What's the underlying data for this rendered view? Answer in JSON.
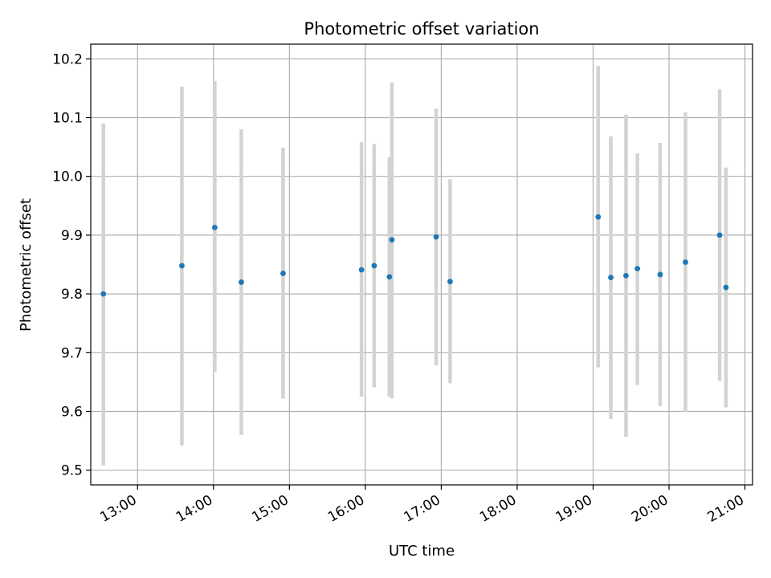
{
  "chart_data": {
    "type": "scatter",
    "title": "Photometric offset variation",
    "xlabel": "UTC time",
    "ylabel": "Photometric offset",
    "x_axis_type": "time",
    "xlim": [
      "12:23",
      "21:06"
    ],
    "ylim": [
      9.475,
      10.225
    ],
    "xticks": [
      "13:00",
      "14:00",
      "15:00",
      "16:00",
      "17:00",
      "18:00",
      "19:00",
      "20:00",
      "21:00"
    ],
    "yticks": [
      9.5,
      9.6,
      9.7,
      9.8,
      9.9,
      10.0,
      10.1,
      10.2
    ],
    "ytick_labels": [
      "9.5",
      "9.6",
      "9.7",
      "9.8",
      "9.9",
      "10.0",
      "10.1",
      "10.2"
    ],
    "grid": true,
    "colors": {
      "point": "#1f77b4",
      "errorbar": "#d3d3d3",
      "grid": "#b0b0b0"
    },
    "points": [
      {
        "x": "12:33",
        "y": 9.8,
        "ylow": 9.508,
        "yhigh": 10.09
      },
      {
        "x": "13:35",
        "y": 9.848,
        "ylow": 9.542,
        "yhigh": 10.153
      },
      {
        "x": "14:01",
        "y": 9.913,
        "ylow": 9.667,
        "yhigh": 10.162
      },
      {
        "x": "14:22",
        "y": 9.82,
        "ylow": 9.56,
        "yhigh": 10.08
      },
      {
        "x": "14:55",
        "y": 9.835,
        "ylow": 9.622,
        "yhigh": 10.049
      },
      {
        "x": "15:57",
        "y": 9.841,
        "ylow": 9.625,
        "yhigh": 10.058
      },
      {
        "x": "16:07",
        "y": 9.848,
        "ylow": 9.641,
        "yhigh": 10.055
      },
      {
        "x": "16:19",
        "y": 9.829,
        "ylow": 9.625,
        "yhigh": 10.033
      },
      {
        "x": "16:21",
        "y": 9.892,
        "ylow": 9.622,
        "yhigh": 10.16
      },
      {
        "x": "16:56",
        "y": 9.897,
        "ylow": 9.678,
        "yhigh": 10.115
      },
      {
        "x": "17:07",
        "y": 9.821,
        "ylow": 9.648,
        "yhigh": 9.995
      },
      {
        "x": "19:04",
        "y": 9.931,
        "ylow": 9.675,
        "yhigh": 10.188
      },
      {
        "x": "19:14",
        "y": 9.828,
        "ylow": 9.587,
        "yhigh": 10.068
      },
      {
        "x": "19:26",
        "y": 9.831,
        "ylow": 9.557,
        "yhigh": 10.105
      },
      {
        "x": "19:35",
        "y": 9.843,
        "ylow": 9.645,
        "yhigh": 10.039
      },
      {
        "x": "19:53",
        "y": 9.833,
        "ylow": 9.609,
        "yhigh": 10.057
      },
      {
        "x": "20:13",
        "y": 9.854,
        "ylow": 9.599,
        "yhigh": 10.109
      },
      {
        "x": "20:40",
        "y": 9.9,
        "ylow": 9.652,
        "yhigh": 10.148
      },
      {
        "x": "20:45",
        "y": 9.811,
        "ylow": 9.607,
        "yhigh": 10.015
      }
    ]
  }
}
